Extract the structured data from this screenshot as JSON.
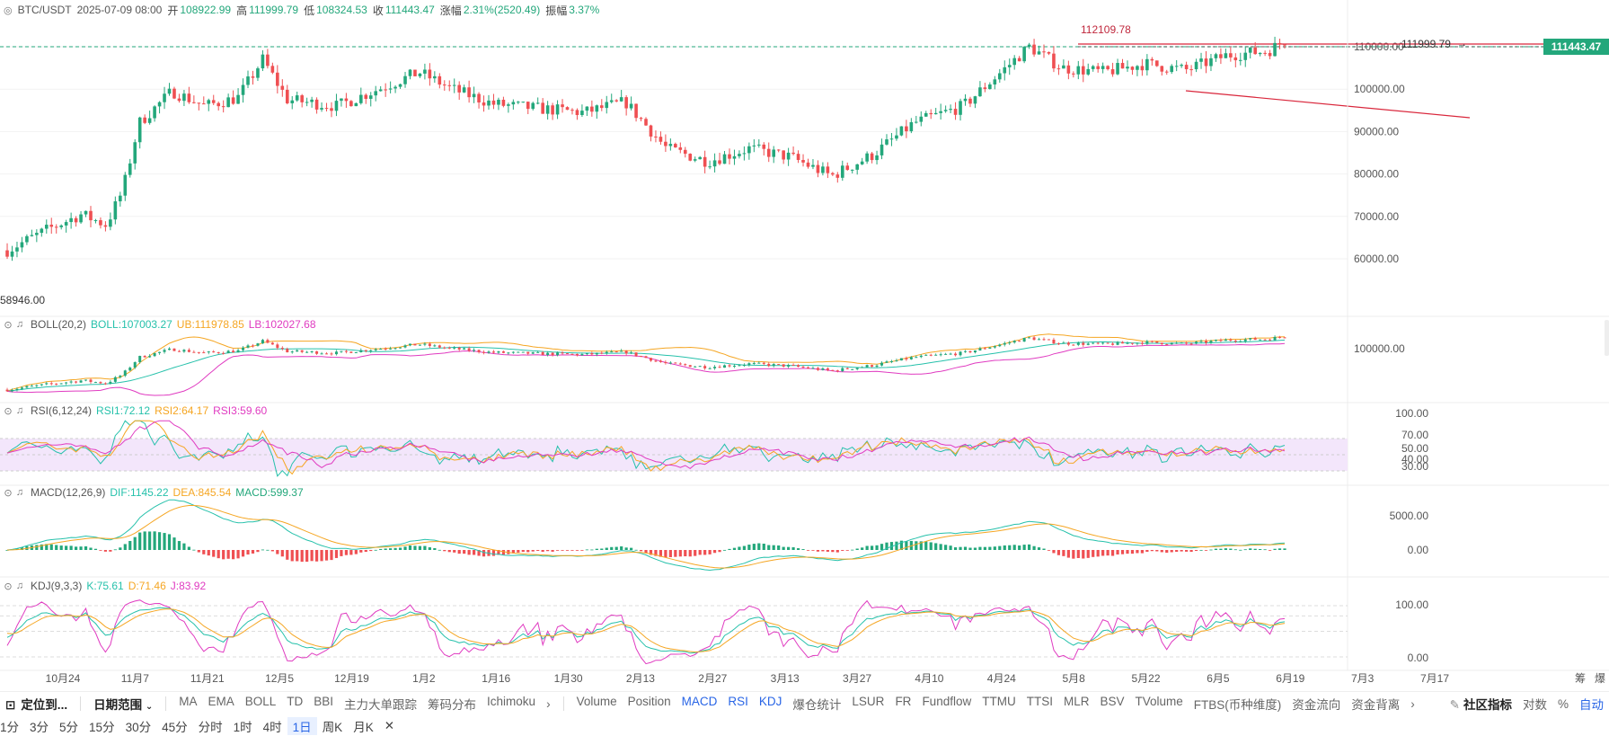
{
  "header": {
    "symbol": "BTC/USDT",
    "datetime": "2025-07-09 08:00",
    "open_label": "开",
    "open": "108922.99",
    "high_label": "高",
    "high": "111999.79",
    "low_label": "低",
    "low": "108324.53",
    "close_label": "收",
    "close": "111443.47",
    "change_label": "涨幅",
    "change": "2.31%(2520.49)",
    "amplitude_label": "振幅",
    "amplitude": "3.37%"
  },
  "price_pane": {
    "last_price_tag": "111443.47",
    "high_annotation": "112109.78",
    "high_marker": "111999.79",
    "low_annotation": "58946.00",
    "y_ticks": [
      "110000.00",
      "100000.00",
      "90000.00",
      "80000.00",
      "70000.00",
      "60000.00"
    ]
  },
  "indicators": {
    "boll": {
      "name": "BOLL(20,2)",
      "mid": "BOLL:107003.27",
      "ub": "UB:111978.85",
      "lb": "LB:102027.68",
      "y_ticks": [
        "100000.00"
      ]
    },
    "rsi": {
      "name": "RSI(6,12,24)",
      "rsi1": "RSI1:72.12",
      "rsi2": "RSI2:64.17",
      "rsi3": "RSI3:59.60",
      "y_ticks": [
        "100.00",
        "70.00",
        "50.00",
        "40.00",
        "30.00"
      ]
    },
    "macd": {
      "name": "MACD(12,26,9)",
      "dif": "DIF:1145.22",
      "dea": "DEA:845.54",
      "macd": "MACD:599.37",
      "y_ticks": [
        "5000.00",
        "0.00"
      ]
    },
    "kdj": {
      "name": "KDJ(9,3,3)",
      "k": "K:75.61",
      "d": "D:71.46",
      "j": "J:83.92",
      "y_ticks": [
        "100.00",
        "0.00"
      ]
    }
  },
  "time_axis": [
    "10月24",
    "11月7",
    "11月21",
    "12月5",
    "12月19",
    "1月2",
    "1月16",
    "1月30",
    "2月13",
    "2月27",
    "3月13",
    "3月27",
    "4月10",
    "4月24",
    "5月8",
    "5月22",
    "6月5",
    "6月19",
    "7月3",
    "7月17"
  ],
  "time_axis_right": [
    "筹",
    "爆"
  ],
  "toolbar": {
    "locate": "定位到...",
    "date_range": "日期范围",
    "main_indicators": [
      "MA",
      "EMA",
      "BOLL",
      "TD",
      "BBI",
      "主力大单跟踪",
      "筹码分布",
      "Ichimoku"
    ],
    "sub_indicators": [
      "Volume",
      "Position",
      "MACD",
      "RSI",
      "KDJ",
      "爆仓统计",
      "LSUR",
      "FR",
      "Fundflow",
      "TTMU",
      "TTSI",
      "MLR",
      "BSV",
      "TVolume",
      "FTBS(币种维度)",
      "资金流向",
      "资金背离"
    ],
    "community": "社区指标",
    "log": "对数",
    "percent": "%",
    "auto": "自动"
  },
  "intervals": [
    "1分",
    "3分",
    "5分",
    "15分",
    "30分",
    "45分",
    "分时",
    "1时",
    "4时",
    "1日",
    "周K",
    "月K"
  ],
  "active_interval": "1日",
  "colors": {
    "up": "#23a77b",
    "down": "#ef4f52",
    "boll_mid": "#26c1ab",
    "boll_ub": "#f5a623",
    "boll_lb": "#e03bc1",
    "trend": "#d9263b",
    "active": "#2a66e6"
  }
}
